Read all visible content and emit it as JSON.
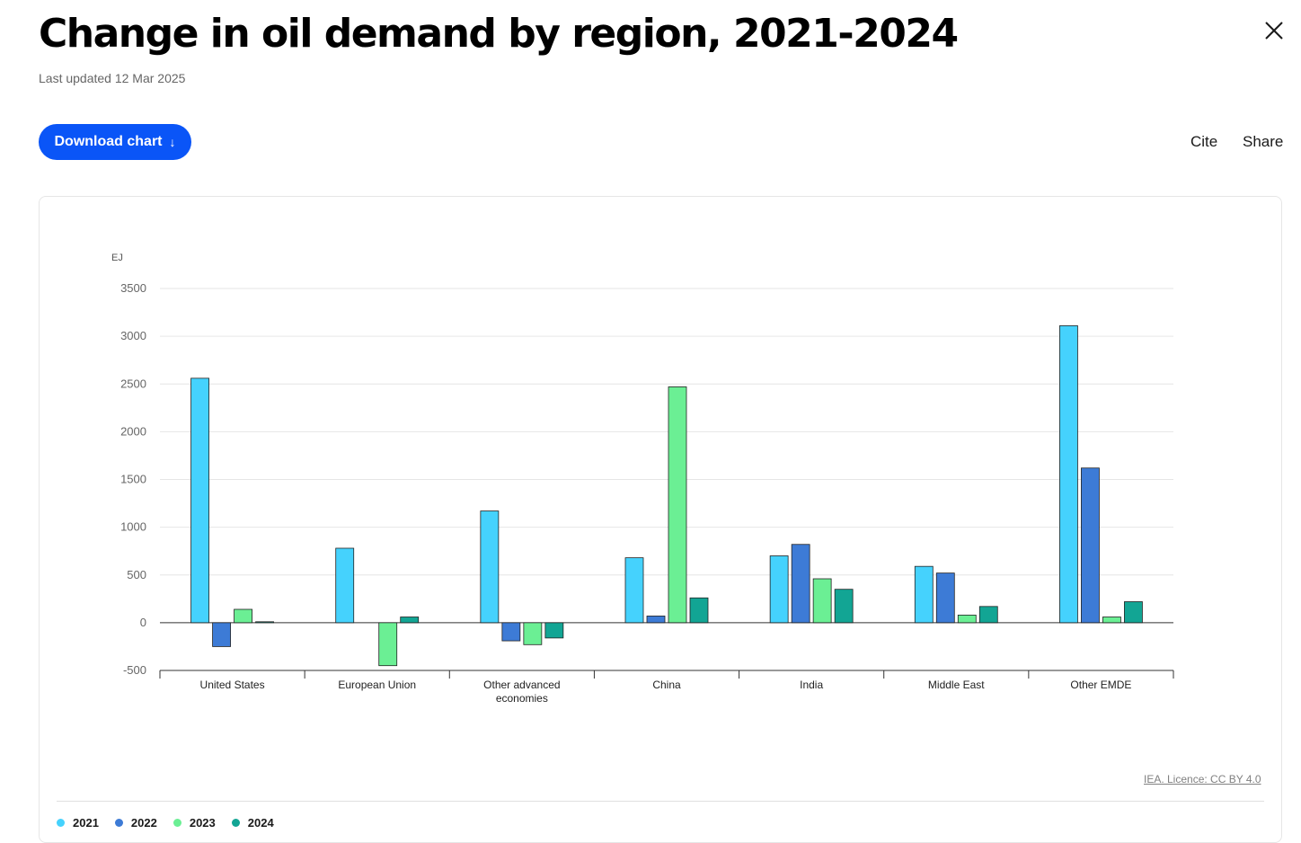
{
  "header": {
    "title": "Change in oil demand by region, 2021-2024",
    "updated": "Last updated 12 Mar 2025",
    "close_icon": "close-icon"
  },
  "toolbar": {
    "download_label": "Download chart",
    "download_icon": "arrow-down-icon",
    "cite_label": "Cite",
    "share_label": "Share"
  },
  "footer": {
    "licence": "IEA. Licence: CC BY 4.0"
  },
  "chart_data": {
    "type": "bar",
    "title": "Change in oil demand by region, 2021-2024",
    "ylabel": "EJ",
    "xlabel": "",
    "ylim": [
      -500,
      3500
    ],
    "yticks": [
      3500,
      3000,
      2500,
      2000,
      1500,
      1000,
      500,
      0,
      -500
    ],
    "grid": true,
    "legend_position": "bottom-left",
    "categories": [
      [
        "United States"
      ],
      [
        "European Union"
      ],
      [
        "Other advanced",
        "economies"
      ],
      [
        "China"
      ],
      [
        "India"
      ],
      [
        "Middle East"
      ],
      [
        "Other EMDE"
      ]
    ],
    "series": [
      {
        "name": "2021",
        "color": "#45d2fd",
        "values": [
          2560,
          780,
          1170,
          680,
          700,
          590,
          3110
        ]
      },
      {
        "name": "2022",
        "color": "#3d7bd6",
        "values": [
          -250,
          0,
          -190,
          70,
          820,
          520,
          1620
        ]
      },
      {
        "name": "2023",
        "color": "#6bef94",
        "values": [
          140,
          -450,
          -230,
          2470,
          460,
          80,
          60
        ]
      },
      {
        "name": "2024",
        "color": "#12a594",
        "values": [
          10,
          60,
          -160,
          260,
          350,
          170,
          220
        ]
      }
    ]
  }
}
